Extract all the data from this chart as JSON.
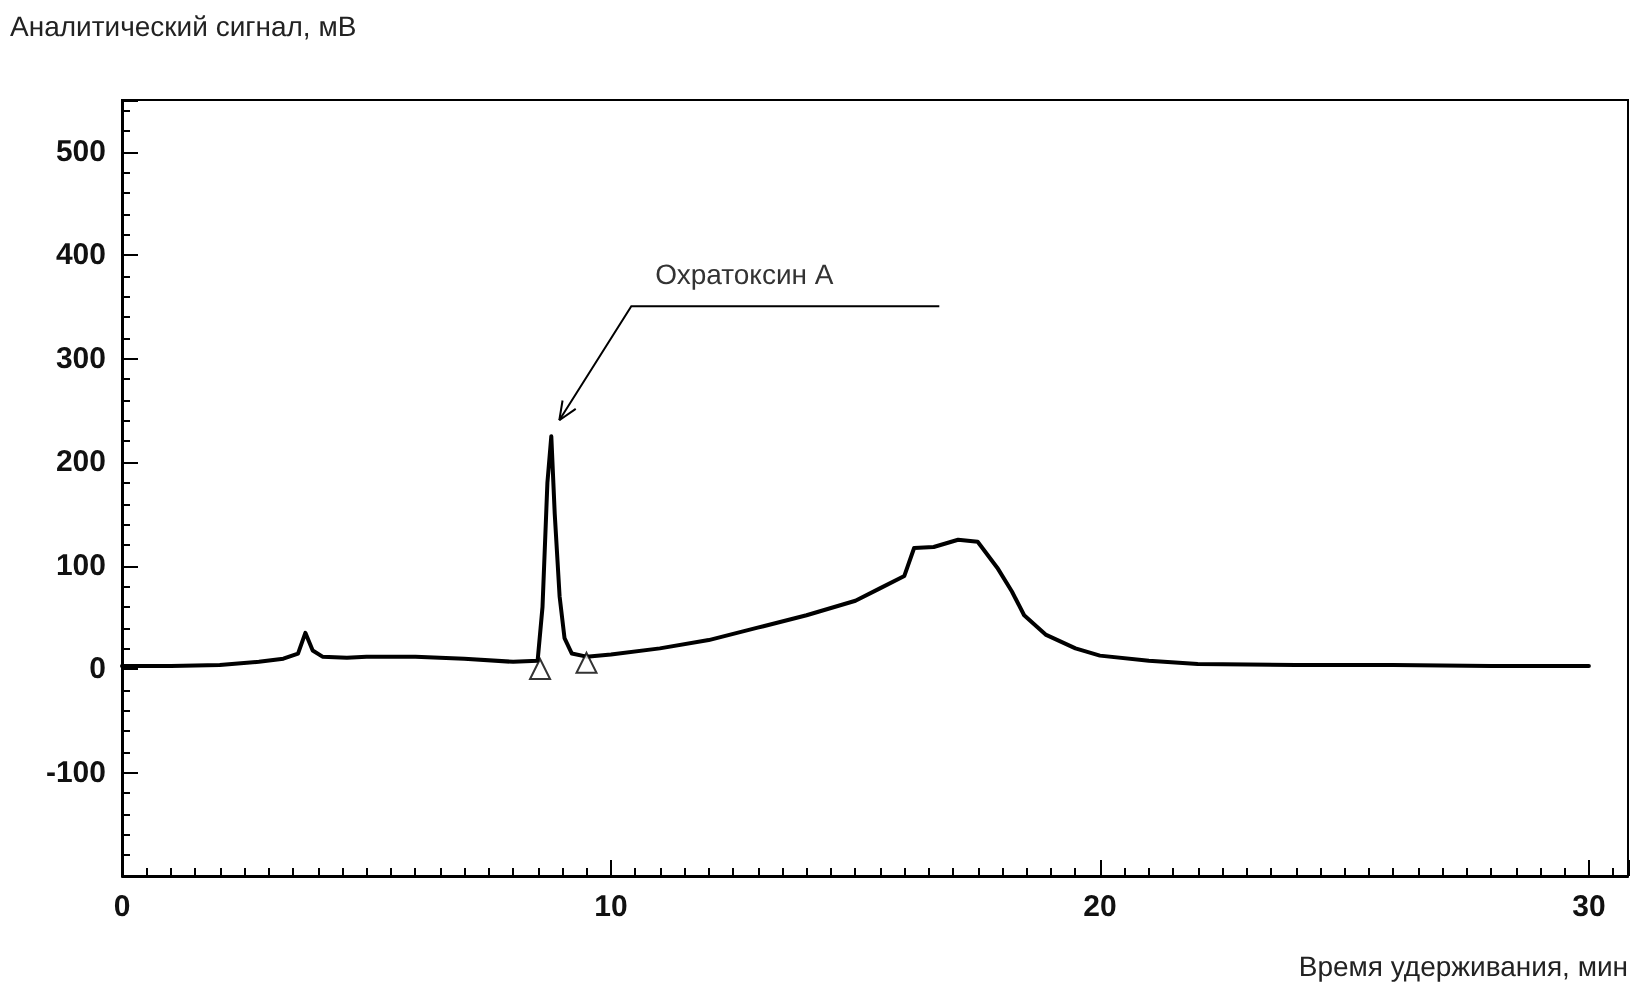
{
  "chart_data": {
    "type": "line",
    "xlabel": "Время удерживания, мин",
    "ylabel": "Аналитический сигнал, мВ",
    "annotations": [
      "Охратоксин А"
    ],
    "series": [
      {
        "color": "#000000",
        "x": [
          0,
          1,
          2,
          2.8,
          3.3,
          3.6,
          3.75,
          3.9,
          4.1,
          4.6,
          5,
          6,
          7,
          8,
          8.5,
          8.6,
          8.7,
          8.78,
          8.85,
          8.95,
          9.05,
          9.2,
          9.5,
          10,
          11,
          12,
          13,
          14,
          15,
          15.5,
          16,
          16.2,
          16.6,
          17.1,
          17.5,
          17.9,
          18.2,
          18.45,
          18.9,
          19.5,
          20,
          21,
          22,
          24,
          26,
          28,
          30
        ],
        "values": [
          3,
          3,
          4,
          7,
          10,
          15,
          35,
          18,
          12,
          11,
          12,
          12,
          10,
          7,
          8,
          60,
          180,
          225,
          150,
          70,
          30,
          15,
          12,
          14,
          20,
          28,
          40,
          52,
          66,
          78,
          90,
          117,
          118,
          125,
          123,
          98,
          75,
          52,
          33,
          20,
          13,
          8,
          5,
          4,
          4,
          3,
          3
        ]
      },
      {
        "type": "scatter",
        "marker": "triangle",
        "color": "#000000",
        "x": [
          8.55,
          9.5
        ],
        "values": [
          0,
          6
        ]
      }
    ],
    "xlim": [
      0,
      30.8
    ],
    "ylim": [
      -200,
      550
    ],
    "xticks": [
      0,
      10,
      20,
      30
    ],
    "yticks": [
      -100,
      0,
      100,
      200,
      300,
      400,
      500
    ],
    "grid": false,
    "marker": "none",
    "line_style": "solid"
  }
}
